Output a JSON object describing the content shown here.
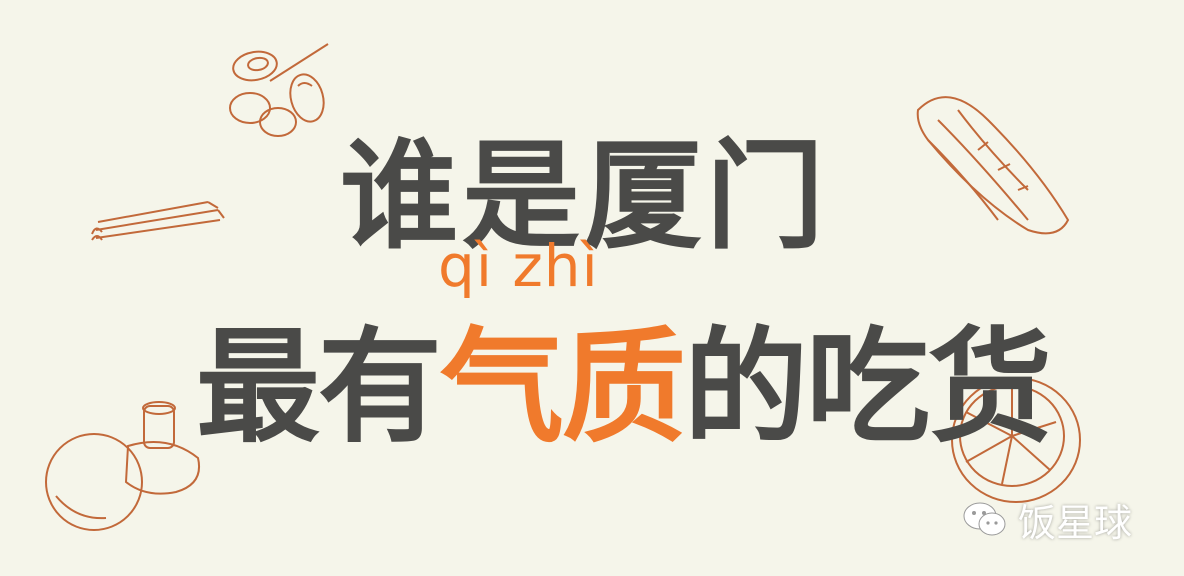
{
  "headline": {
    "line1": "谁是厦门",
    "line2_before": "最有",
    "line2_accent": "气质",
    "line2_after": "的吃货",
    "pinyin": "qì zhì"
  },
  "watermark": {
    "icon": "wechat-icon",
    "text": "饭星球"
  },
  "colors": {
    "background": "#f5f5ea",
    "text": "#4a4a48",
    "accent": "#f07a2c",
    "sketch": "#c2693a"
  }
}
